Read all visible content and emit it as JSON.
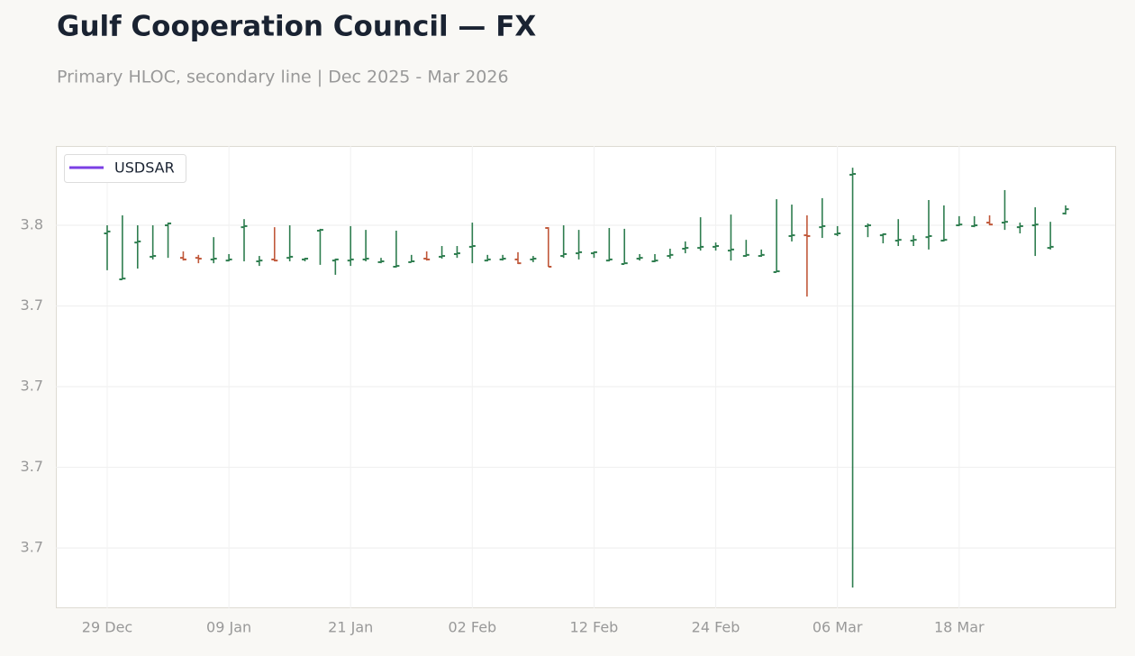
{
  "chart_data": {
    "type": "ohlc",
    "title": "Gulf Cooperation Council — FX",
    "subtitle": "Primary HLOC, secondary line | Dec 2025 - Mar 2026",
    "legend": {
      "name": "USDSAR",
      "color": "#7b3fe4"
    },
    "legend_position": "upper left",
    "up_color": "#2e7d4f",
    "down_color": "#c0583a",
    "grid": true,
    "x": [
      "29 Dec",
      null,
      null,
      null,
      null,
      null,
      null,
      null,
      "09 Jan",
      null,
      null,
      null,
      null,
      null,
      null,
      null,
      "21 Jan",
      null,
      null,
      null,
      null,
      null,
      null,
      null,
      "02 Feb",
      null,
      null,
      null,
      null,
      null,
      null,
      null,
      "12 Feb",
      null,
      null,
      null,
      null,
      null,
      null,
      null,
      "24 Feb",
      null,
      null,
      null,
      null,
      null,
      null,
      null,
      "06 Mar",
      null,
      null,
      null,
      null,
      null,
      null,
      null,
      "18 Mar",
      null,
      null,
      null,
      null,
      null,
      null,
      null
    ],
    "open": [
      3.7517,
      3.74999,
      3.75136,
      3.75083,
      3.752,
      3.75079,
      3.75079,
      3.75073,
      3.75069,
      3.75193,
      3.75066,
      3.75073,
      3.75079,
      3.75073,
      3.7518,
      3.75069,
      3.75069,
      3.75073,
      3.75063,
      3.75046,
      3.75063,
      3.75076,
      3.75083,
      3.75093,
      3.7512,
      3.75069,
      3.75073,
      3.75073,
      3.75073,
      3.7519,
      3.75086,
      3.75096,
      3.75096,
      3.75069,
      3.75056,
      3.75076,
      3.75066,
      3.75086,
      3.75113,
      3.75116,
      3.7512,
      3.75106,
      3.75086,
      3.75086,
      3.75026,
      3.7516,
      3.75163,
      3.75193,
      3.75167,
      3.75388,
      3.75197,
      3.75163,
      3.75143,
      3.75143,
      3.75156,
      3.75143,
      3.752,
      3.75197,
      3.7521,
      3.7521,
      3.75193,
      3.752,
      3.75116,
      3.75244
    ],
    "high": [
      3.752,
      3.75237,
      3.752,
      3.752,
      3.7521,
      3.75103,
      3.7509,
      3.75156,
      3.75093,
      3.75223,
      3.75086,
      3.75193,
      3.752,
      3.75079,
      3.75187,
      3.75076,
      3.75197,
      3.75183,
      3.75079,
      3.7518,
      3.7509,
      3.75103,
      3.75123,
      3.75123,
      3.7521,
      3.7509,
      3.7509,
      3.751,
      3.75086,
      3.75193,
      3.752,
      3.75183,
      3.75103,
      3.7519,
      3.75187,
      3.75093,
      3.75093,
      3.75113,
      3.7514,
      3.7523,
      3.75136,
      3.7524,
      3.75146,
      3.7511,
      3.75297,
      3.75277,
      3.75237,
      3.75301,
      3.75197,
      3.75414,
      3.75207,
      3.7517,
      3.75223,
      3.75163,
      3.75294,
      3.75274,
      3.75234,
      3.75234,
      3.75237,
      3.75331,
      3.7521,
      3.75267,
      3.75213,
      3.75274
    ],
    "low": [
      3.75033,
      3.74999,
      3.75039,
      3.75073,
      3.75079,
      3.75069,
      3.75059,
      3.75059,
      3.75066,
      3.75066,
      3.75049,
      3.75066,
      3.75066,
      3.75066,
      3.75053,
      3.75016,
      3.75049,
      3.75066,
      3.75059,
      3.75043,
      3.75063,
      3.75069,
      3.75076,
      3.75079,
      3.75059,
      3.75066,
      3.75069,
      3.75056,
      3.75063,
      3.75046,
      3.75079,
      3.75073,
      3.75079,
      3.75066,
      3.75056,
      3.75069,
      3.75063,
      3.75076,
      3.75096,
      3.75106,
      3.75106,
      3.75069,
      3.75083,
      3.75083,
      3.75026,
      3.7514,
      3.74935,
      3.75153,
      3.7516,
      3.73853,
      3.75156,
      3.75133,
      3.75123,
      3.75123,
      3.7511,
      3.7514,
      3.75197,
      3.75193,
      3.752,
      3.75183,
      3.7517,
      3.75086,
      3.7511,
      3.7524
    ],
    "close": [
      3.75177,
      3.75002,
      3.7514,
      3.75086,
      3.75207,
      3.75073,
      3.75076,
      3.75076,
      3.75073,
      3.75197,
      3.75069,
      3.75069,
      3.75083,
      3.75076,
      3.75183,
      3.75073,
      3.75073,
      3.75076,
      3.75066,
      3.75049,
      3.75066,
      3.75073,
      3.75086,
      3.75096,
      3.75123,
      3.75073,
      3.75076,
      3.75059,
      3.75076,
      3.75046,
      3.75093,
      3.751,
      3.751,
      3.75073,
      3.75059,
      3.75079,
      3.75069,
      3.7509,
      3.75116,
      3.7512,
      3.75123,
      3.7511,
      3.7509,
      3.7509,
      3.75029,
      3.75163,
      3.7516,
      3.75197,
      3.7517,
      3.75391,
      3.752,
      3.75167,
      3.75146,
      3.75146,
      3.7516,
      3.75146,
      3.75203,
      3.752,
      3.75203,
      3.75213,
      3.75197,
      3.75203,
      3.7512,
      3.7526
    ],
    "ylim": [
      3.73776,
      3.75495
    ],
    "yticks": [
      {
        "value": 3.752,
        "label": "3.8"
      },
      {
        "value": 3.749,
        "label": "3.7"
      },
      {
        "value": 3.746,
        "label": "3.7"
      },
      {
        "value": 3.743,
        "label": "3.7"
      },
      {
        "value": 3.74,
        "label": "3.7"
      }
    ]
  }
}
